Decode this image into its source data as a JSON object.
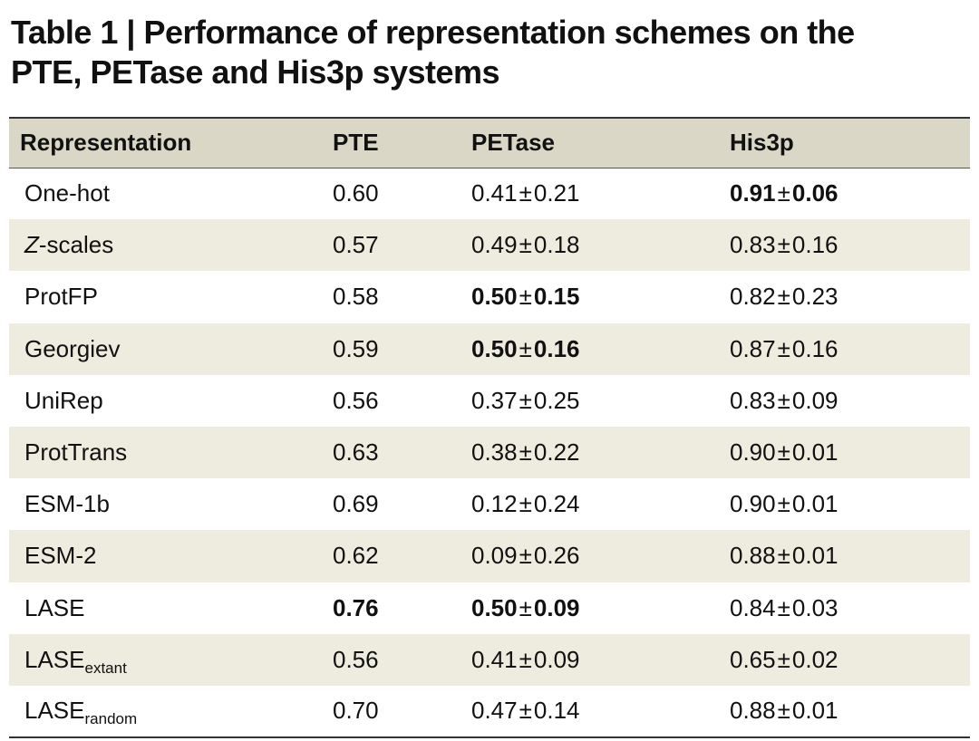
{
  "title": {
    "line1": "Table 1 | Performance of representation schemes on the",
    "line2": "PTE, PETase and His3p systems"
  },
  "table": {
    "headers": [
      "Representation",
      "PTE",
      "PETase",
      "His3p"
    ],
    "pm_symbol": "±",
    "rows": [
      {
        "rep": {
          "main": "One-hot",
          "italic": "",
          "sub": ""
        },
        "pte": {
          "v": "0.60",
          "bold": false
        },
        "petase": {
          "mean": "0.41",
          "sd": "0.21",
          "bold": false
        },
        "his3p": {
          "mean": "0.91",
          "sd": "0.06",
          "bold": true
        }
      },
      {
        "rep": {
          "main": "-scales",
          "italic": "Z",
          "sub": ""
        },
        "pte": {
          "v": "0.57",
          "bold": false
        },
        "petase": {
          "mean": "0.49",
          "sd": "0.18",
          "bold": false
        },
        "his3p": {
          "mean": "0.83",
          "sd": "0.16",
          "bold": false
        }
      },
      {
        "rep": {
          "main": "ProtFP",
          "italic": "",
          "sub": ""
        },
        "pte": {
          "v": "0.58",
          "bold": false
        },
        "petase": {
          "mean": "0.50",
          "sd": "0.15",
          "bold": true
        },
        "his3p": {
          "mean": "0.82",
          "sd": "0.23",
          "bold": false
        }
      },
      {
        "rep": {
          "main": "Georgiev",
          "italic": "",
          "sub": ""
        },
        "pte": {
          "v": "0.59",
          "bold": false
        },
        "petase": {
          "mean": "0.50",
          "sd": "0.16",
          "bold": true
        },
        "his3p": {
          "mean": "0.87",
          "sd": "0.16",
          "bold": false
        }
      },
      {
        "rep": {
          "main": "UniRep",
          "italic": "",
          "sub": ""
        },
        "pte": {
          "v": "0.56",
          "bold": false
        },
        "petase": {
          "mean": "0.37",
          "sd": "0.25",
          "bold": false
        },
        "his3p": {
          "mean": "0.83",
          "sd": "0.09",
          "bold": false
        }
      },
      {
        "rep": {
          "main": "ProtTrans",
          "italic": "",
          "sub": ""
        },
        "pte": {
          "v": "0.63",
          "bold": false
        },
        "petase": {
          "mean": "0.38",
          "sd": "0.22",
          "bold": false
        },
        "his3p": {
          "mean": "0.90",
          "sd": "0.01",
          "bold": false
        }
      },
      {
        "rep": {
          "main": "ESM-1b",
          "italic": "",
          "sub": ""
        },
        "pte": {
          "v": "0.69",
          "bold": false
        },
        "petase": {
          "mean": "0.12",
          "sd": "0.24",
          "bold": false
        },
        "his3p": {
          "mean": "0.90",
          "sd": "0.01",
          "bold": false
        }
      },
      {
        "rep": {
          "main": "ESM-2",
          "italic": "",
          "sub": ""
        },
        "pte": {
          "v": "0.62",
          "bold": false
        },
        "petase": {
          "mean": "0.09",
          "sd": "0.26",
          "bold": false
        },
        "his3p": {
          "mean": "0.88",
          "sd": "0.01",
          "bold": false
        }
      },
      {
        "rep": {
          "main": "LASE",
          "italic": "",
          "sub": ""
        },
        "pte": {
          "v": "0.76",
          "bold": true
        },
        "petase": {
          "mean": "0.50",
          "sd": "0.09",
          "bold": true
        },
        "his3p": {
          "mean": "0.84",
          "sd": "0.03",
          "bold": false
        }
      },
      {
        "rep": {
          "main": "LASE",
          "italic": "",
          "sub": "extant"
        },
        "pte": {
          "v": "0.56",
          "bold": false
        },
        "petase": {
          "mean": "0.41",
          "sd": "0.09",
          "bold": false
        },
        "his3p": {
          "mean": "0.65",
          "sd": "0.02",
          "bold": false
        }
      },
      {
        "rep": {
          "main": "LASE",
          "italic": "",
          "sub": "random"
        },
        "pte": {
          "v": "0.70",
          "bold": false
        },
        "petase": {
          "mean": "0.47",
          "sd": "0.14",
          "bold": false
        },
        "his3p": {
          "mean": "0.88",
          "sd": "0.01",
          "bold": false
        }
      }
    ]
  }
}
